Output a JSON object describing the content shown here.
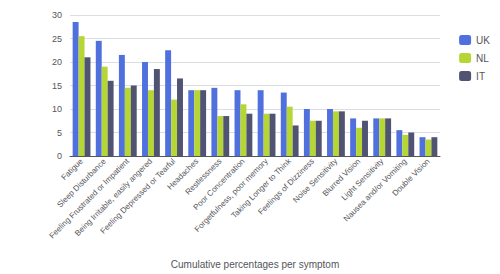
{
  "chart_data": {
    "type": "bar",
    "xlabel": "Cumulative percentages per symptom",
    "categories": [
      "Fatigue",
      "Sleep Disturbance",
      "Feeling Frustrated or Impatient",
      "Being Irritable, easily angered",
      "Feeling Depressed or Tearful",
      "Headaches",
      "Restlessness",
      "Poor Concentration",
      "Forgetfulness, poor memory",
      "Taking Longer to Think",
      "Feelings of Dizziness",
      "Noise Sensitivity",
      "Blurred Vision",
      "Light Sensitivity",
      "Nausea and/or Vomiting",
      "Double Vision"
    ],
    "series": [
      {
        "name": "UK",
        "values": [
          28.5,
          24.5,
          21.5,
          20.0,
          22.5,
          14.0,
          14.5,
          14.0,
          14.0,
          13.5,
          10.0,
          10.0,
          8.0,
          8.0,
          5.5,
          4.0
        ]
      },
      {
        "name": "NL",
        "values": [
          25.5,
          19.0,
          14.5,
          14.0,
          12.0,
          14.0,
          8.5,
          11.0,
          9.0,
          10.5,
          7.5,
          9.5,
          6.0,
          8.0,
          4.5,
          3.5
        ]
      },
      {
        "name": "IT",
        "values": [
          21.0,
          16.0,
          15.0,
          18.5,
          16.5,
          14.0,
          8.5,
          9.0,
          9.0,
          6.5,
          7.5,
          9.5,
          7.5,
          8.0,
          5.0,
          4.0
        ]
      }
    ],
    "ylim": [
      0,
      30
    ],
    "yticks": [
      0,
      5,
      10,
      15,
      20,
      25,
      30
    ],
    "grid": true,
    "legend": "right"
  }
}
